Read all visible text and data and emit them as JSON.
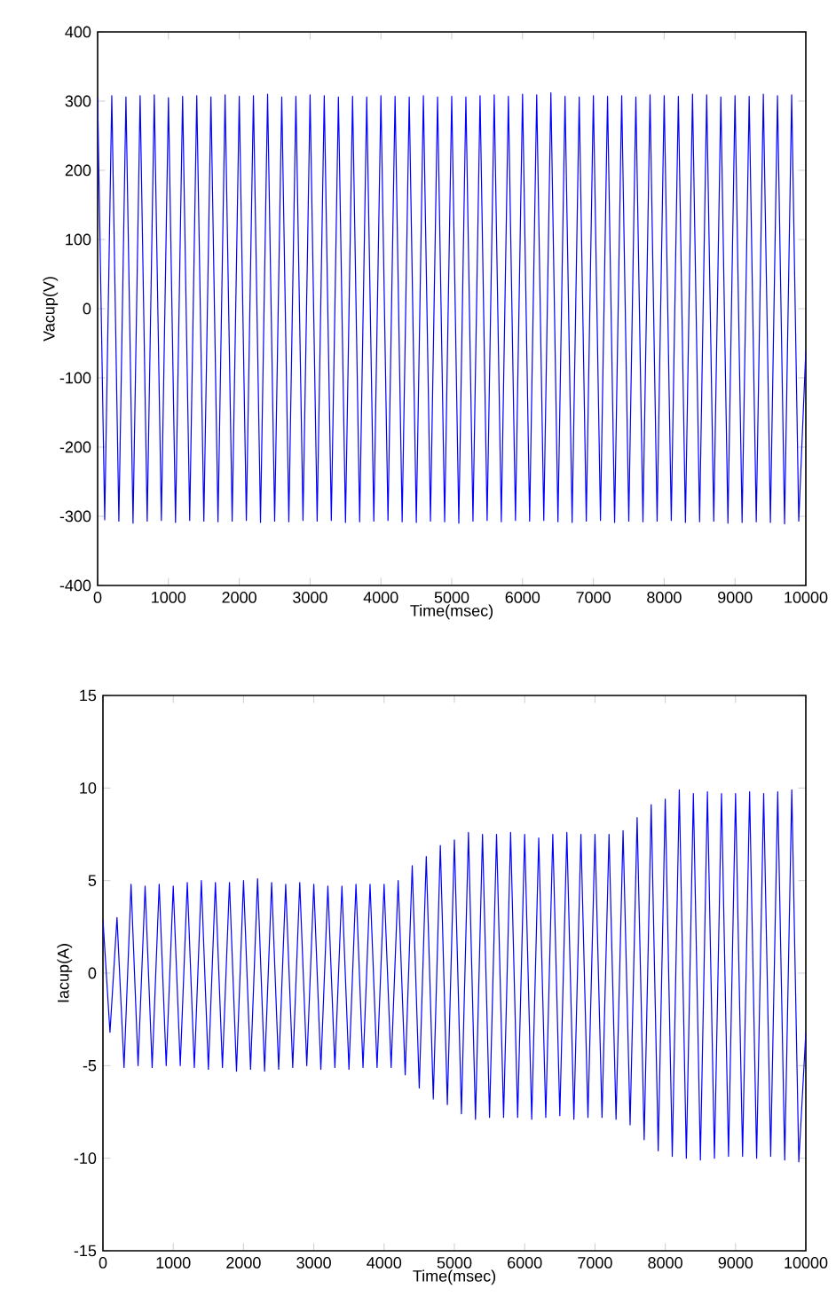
{
  "chart_data": [
    {
      "type": "line",
      "xlabel": "Time(msec)",
      "ylabel": "Vacup(V)",
      "color": "#0000ff",
      "xlim": [
        0,
        10000
      ],
      "ylim": [
        -400,
        400
      ],
      "xticks": [
        0,
        1000,
        2000,
        3000,
        4000,
        5000,
        6000,
        7000,
        8000,
        9000,
        10000
      ],
      "yticks": [
        -400,
        -300,
        -200,
        -100,
        0,
        100,
        200,
        300,
        400
      ],
      "x": [
        0,
        100,
        200,
        300,
        400,
        500,
        600,
        700,
        800,
        900,
        1000,
        1100,
        1200,
        1300,
        1400,
        1500,
        1600,
        1700,
        1800,
        1900,
        2000,
        2100,
        2200,
        2300,
        2400,
        2500,
        2600,
        2700,
        2800,
        2900,
        3000,
        3100,
        3200,
        3300,
        3400,
        3500,
        3600,
        3700,
        3800,
        3900,
        4000,
        4100,
        4200,
        4300,
        4400,
        4500,
        4600,
        4700,
        4800,
        4900,
        5000,
        5100,
        5200,
        5300,
        5400,
        5500,
        5600,
        5700,
        5800,
        5900,
        6000,
        6100,
        6200,
        6300,
        6400,
        6500,
        6600,
        6700,
        6800,
        6900,
        7000,
        7100,
        7200,
        7300,
        7400,
        7500,
        7600,
        7700,
        7800,
        7900,
        8000,
        8100,
        8200,
        8300,
        8400,
        8500,
        8600,
        8700,
        8800,
        8900,
        9000,
        9100,
        9200,
        9300,
        9400,
        9500,
        9600,
        9700,
        9800,
        9900,
        10000
      ],
      "values": [
        305,
        -305,
        308,
        -307,
        306,
        -310,
        308,
        -307,
        309,
        -306,
        305,
        -309,
        307,
        -306,
        308,
        -307,
        306,
        -308,
        309,
        -307,
        307,
        -306,
        308,
        -309,
        310,
        -307,
        306,
        -308,
        307,
        -306,
        309,
        -307,
        308,
        -306,
        306,
        -309,
        307,
        -308,
        306,
        -307,
        308,
        -306,
        307,
        -308,
        306,
        -309,
        308,
        -307,
        306,
        -308,
        307,
        -310,
        306,
        -307,
        308,
        -306,
        309,
        -308,
        307,
        -306,
        310,
        -307,
        309,
        -306,
        312,
        -308,
        307,
        -309,
        306,
        -307,
        308,
        -306,
        307,
        -309,
        308,
        -307,
        306,
        -308,
        309,
        -307,
        308,
        -306,
        307,
        -309,
        310,
        -308,
        309,
        -307,
        306,
        -310,
        308,
        -309,
        307,
        -308,
        310,
        -309,
        308,
        -311,
        309,
        -307,
        -60
      ]
    },
    {
      "type": "line",
      "xlabel": "Time(msec)",
      "ylabel": "Iacup(A)",
      "color": "#0000ff",
      "xlim": [
        0,
        10000
      ],
      "ylim": [
        -15,
        15
      ],
      "xticks": [
        0,
        1000,
        2000,
        3000,
        4000,
        5000,
        6000,
        7000,
        8000,
        9000,
        10000
      ],
      "yticks": [
        -15,
        -10,
        -5,
        0,
        5,
        10,
        15
      ],
      "x": [
        0,
        100,
        200,
        300,
        400,
        500,
        600,
        700,
        800,
        900,
        1000,
        1100,
        1200,
        1300,
        1400,
        1500,
        1600,
        1700,
        1800,
        1900,
        2000,
        2100,
        2200,
        2300,
        2400,
        2500,
        2600,
        2700,
        2800,
        2900,
        3000,
        3100,
        3200,
        3300,
        3400,
        3500,
        3600,
        3700,
        3800,
        3900,
        4000,
        4100,
        4200,
        4300,
        4400,
        4500,
        4600,
        4700,
        4800,
        4900,
        5000,
        5100,
        5200,
        5300,
        5400,
        5500,
        5600,
        5700,
        5800,
        5900,
        6000,
        6100,
        6200,
        6300,
        6400,
        6500,
        6600,
        6700,
        6800,
        6900,
        7000,
        7100,
        7200,
        7300,
        7400,
        7500,
        7600,
        7700,
        7800,
        7900,
        8000,
        8100,
        8200,
        8300,
        8400,
        8500,
        8600,
        8700,
        8800,
        8900,
        9000,
        9100,
        9200,
        9300,
        9400,
        9500,
        9600,
        9700,
        9800,
        9900,
        10000
      ],
      "values": [
        2.9,
        -3.2,
        3.0,
        -5.1,
        4.8,
        -5.0,
        4.7,
        -5.1,
        4.8,
        -5.0,
        4.7,
        -5.0,
        4.9,
        -5.1,
        5.0,
        -5.2,
        4.9,
        -5.1,
        4.9,
        -5.3,
        5.0,
        -5.2,
        5.1,
        -5.3,
        4.9,
        -5.2,
        4.8,
        -5.1,
        4.9,
        -5.0,
        4.8,
        -5.2,
        4.7,
        -5.1,
        4.7,
        -5.2,
        4.8,
        -5.1,
        4.8,
        -5.1,
        4.8,
        -5.1,
        5.0,
        -5.5,
        5.8,
        -6.2,
        6.3,
        -6.8,
        6.9,
        -7.1,
        7.2,
        -7.6,
        7.6,
        -7.9,
        7.5,
        -7.8,
        7.5,
        -7.8,
        7.6,
        -7.8,
        7.5,
        -7.9,
        7.3,
        -7.8,
        7.5,
        -7.7,
        7.6,
        -7.9,
        7.5,
        -7.8,
        7.5,
        -7.8,
        7.5,
        -7.9,
        7.7,
        -8.2,
        8.4,
        -9.0,
        9.1,
        -9.6,
        9.4,
        -9.9,
        9.9,
        -10.0,
        9.7,
        -10.1,
        9.8,
        -10.0,
        9.7,
        -9.9,
        9.7,
        -9.9,
        9.8,
        -10.0,
        9.7,
        -9.9,
        9.8,
        -10.1,
        9.9,
        -10.2,
        -3.2
      ]
    }
  ]
}
